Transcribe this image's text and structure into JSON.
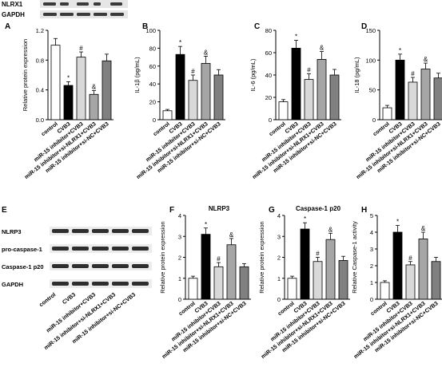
{
  "blots_top": {
    "labels": [
      "NLRX1",
      "GAPDH"
    ]
  },
  "blots_e": {
    "letter": "E",
    "labels": [
      "NLRP3",
      "pro-caspase-1",
      "Caspase-1 p20",
      "GAPDH"
    ]
  },
  "group_labels": [
    "control",
    "CVB3",
    "miR-15 inhibitor+CVB3",
    "miR-15 inhibitor+si-NLRX1+CVB3",
    "miR-15 inhibitor+si-NC+CVB3"
  ],
  "colors": {
    "control": "#ffffff",
    "cvb3": "#000000",
    "dark_grey": "#808080",
    "light_grey": "#d9d9d9",
    "mid_grey": "#a6a6a6"
  },
  "chart_data": [
    {
      "id": "A",
      "type": "bar",
      "letter": "A",
      "title": "",
      "ylabel": "Relative protein expression",
      "ylim": [
        0,
        1.2
      ],
      "ticks": [
        "0.0",
        "0.4",
        "0.8",
        "1.2"
      ],
      "categories": [
        "control",
        "CVB3",
        "miR-15 inhibitor+CVB3",
        "miR-15 inhibitor+si-NLRX1+CVB3",
        "miR-15 inhibitor+si-NC+CVB3"
      ],
      "values": [
        1.0,
        0.46,
        0.84,
        0.34,
        0.79
      ],
      "errors": [
        0.09,
        0.05,
        0.07,
        0.05,
        0.09
      ],
      "marks": [
        "",
        "*",
        "#",
        "&",
        ""
      ]
    },
    {
      "id": "B",
      "type": "bar",
      "letter": "B",
      "title": "",
      "ylabel": "IL-1β (pg/mL)",
      "ylim": [
        0,
        100
      ],
      "ticks": [
        "0",
        "20",
        "40",
        "60",
        "80",
        "100"
      ],
      "categories": [
        "control",
        "CVB3",
        "miR-15 inhibitor+CVB3",
        "miR-15 inhibitor+si-NLRX1+CVB3",
        "miR-15 inhibitor+si-NC+CVB3"
      ],
      "values": [
        10,
        73,
        44,
        63,
        50
      ],
      "errors": [
        1.5,
        9,
        6,
        8,
        6
      ],
      "marks": [
        "",
        "*",
        "#",
        "&",
        ""
      ]
    },
    {
      "id": "C",
      "type": "bar",
      "letter": "C",
      "title": "",
      "ylabel": "IL-6 (pg/mL)",
      "ylim": [
        0,
        80
      ],
      "ticks": [
        "0",
        "20",
        "40",
        "60",
        "80"
      ],
      "categories": [
        "control",
        "CVB3",
        "miR-15 inhibitor+CVB3",
        "miR-15 inhibitor+si-NLRX1+CVB3",
        "miR-15 inhibitor+si-NC+CVB3"
      ],
      "values": [
        16,
        64,
        36,
        54,
        40
      ],
      "errors": [
        2,
        7,
        5,
        7,
        5
      ],
      "marks": [
        "",
        "*",
        "#",
        "&",
        ""
      ]
    },
    {
      "id": "D",
      "type": "bar",
      "letter": "D",
      "title": "",
      "ylabel": "IL-18 (pg/mL)",
      "ylim": [
        0,
        150
      ],
      "ticks": [
        "0",
        "50",
        "100",
        "150"
      ],
      "categories": [
        "control",
        "CVB3",
        "miR-15 inhibitor+CVB3",
        "miR-15 inhibitor+si-NLRX1+CVB3",
        "miR-15 inhibitor+si-NC+CVB3"
      ],
      "values": [
        20,
        100,
        63,
        85,
        70
      ],
      "errors": [
        4,
        10,
        8,
        10,
        8
      ],
      "marks": [
        "",
        "*",
        "#",
        "&",
        ""
      ]
    },
    {
      "id": "F",
      "type": "bar",
      "letter": "F",
      "title": "NLRP3",
      "ylabel": "Relative protein expression",
      "ylim": [
        0,
        4
      ],
      "ticks": [
        "0",
        "1",
        "2",
        "3",
        "4"
      ],
      "categories": [
        "control",
        "CVB3",
        "miR-15 inhibitor+CVB3",
        "miR-15 inhibitor+si-NLRX1+CVB3",
        "miR-15 inhibitor+si-NC+CVB3"
      ],
      "values": [
        1.0,
        3.1,
        1.55,
        2.6,
        1.55
      ],
      "errors": [
        0.1,
        0.3,
        0.2,
        0.3,
        0.15
      ],
      "marks": [
        "",
        "*",
        "#",
        "&",
        ""
      ]
    },
    {
      "id": "G",
      "type": "bar",
      "letter": "G",
      "title": "Caspase-1 p20",
      "ylabel": "Relative protein expression",
      "ylim": [
        0,
        4
      ],
      "ticks": [
        "0",
        "1",
        "2",
        "3",
        "4"
      ],
      "categories": [
        "control",
        "CVB3",
        "miR-15 inhibitor+CVB3",
        "miR-15 inhibitor+si-NLRX1+CVB3",
        "miR-15 inhibitor+si-NC+CVB3"
      ],
      "values": [
        1.0,
        3.35,
        1.8,
        2.85,
        1.85
      ],
      "errors": [
        0.1,
        0.3,
        0.2,
        0.3,
        0.2
      ],
      "marks": [
        "",
        "*",
        "#",
        "&",
        ""
      ]
    },
    {
      "id": "H",
      "type": "bar",
      "letter": "H",
      "title": "",
      "ylabel": "Relative Caspase-1 activity",
      "ylim": [
        0,
        5
      ],
      "ticks": [
        "0",
        "1",
        "2",
        "3",
        "4",
        "5"
      ],
      "categories": [
        "control",
        "CVB3",
        "miR-15 inhibitor+CVB3",
        "miR-15 inhibitor+si-NLRX1+CVB3",
        "miR-15 inhibitor+si-NC+CVB3"
      ],
      "values": [
        1.0,
        4.0,
        2.05,
        3.6,
        2.25
      ],
      "errors": [
        0.1,
        0.4,
        0.2,
        0.4,
        0.25
      ],
      "marks": [
        "",
        "*",
        "#",
        "&",
        ""
      ]
    }
  ]
}
